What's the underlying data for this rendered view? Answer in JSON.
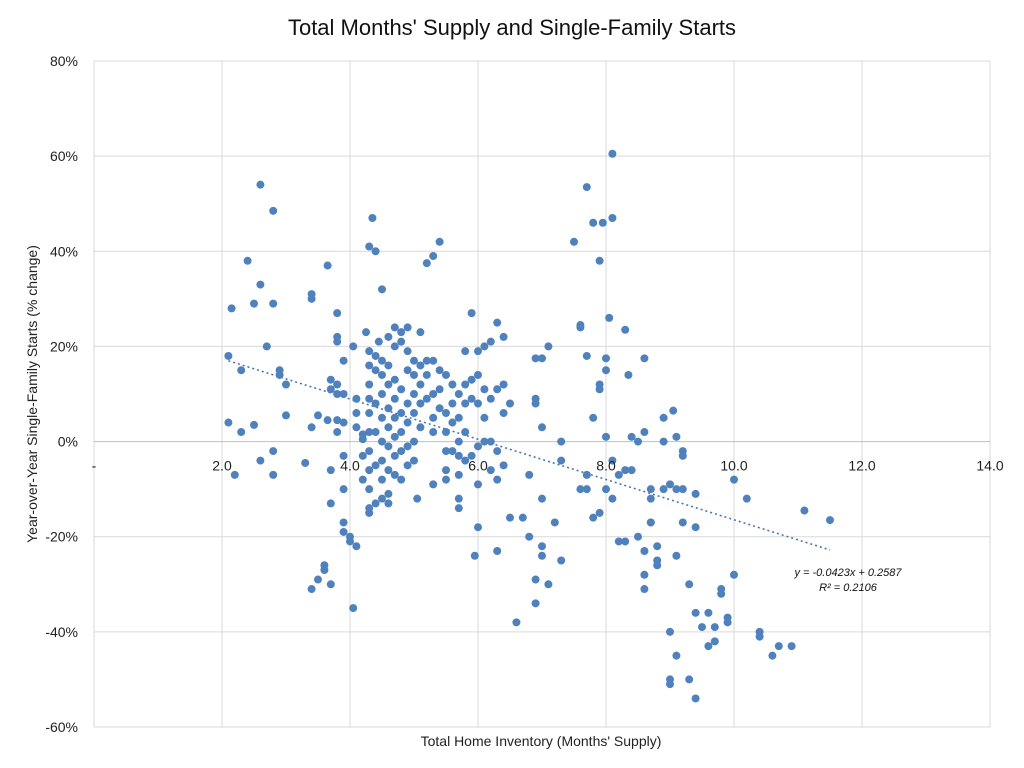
{
  "chart_data": {
    "type": "scatter",
    "title": "Total Months' Supply and Single-Family Starts",
    "xlabel": "Total Home Inventory (Months' Supply)",
    "ylabel": "Year-over-Year Single-Family Starts (% change)",
    "xlim": [
      0,
      14
    ],
    "ylim": [
      -0.6,
      0.8
    ],
    "x_ticks": [
      "-",
      "2.0",
      "4.0",
      "6.0",
      "8.0",
      "10.0",
      "12.0",
      "14.0"
    ],
    "y_ticks": [
      "-60%",
      "-40%",
      "-20%",
      "0%",
      "20%",
      "40%",
      "60%",
      "80%"
    ],
    "grid": true,
    "trendline": {
      "type": "linear",
      "slope": -0.0423,
      "intercept": 0.2587,
      "x_range": [
        2.1,
        11.5
      ],
      "equation": "y = -0.0423x + 0.2587",
      "r_squared": "R² = 0.2106"
    },
    "series": [
      {
        "color": "#4f81bd",
        "points": [
          [
            2.1,
            0.18
          ],
          [
            2.1,
            0.04
          ],
          [
            2.2,
            -0.07
          ],
          [
            2.15,
            0.28
          ],
          [
            2.3,
            0.15
          ],
          [
            2.3,
            0.02
          ],
          [
            2.4,
            0.38
          ],
          [
            2.5,
            0.29
          ],
          [
            2.5,
            0.035
          ],
          [
            2.6,
            0.54
          ],
          [
            2.6,
            0.33
          ],
          [
            2.6,
            -0.04
          ],
          [
            2.7,
            0.2
          ],
          [
            2.8,
            0.485
          ],
          [
            2.8,
            0.29
          ],
          [
            2.8,
            -0.07
          ],
          [
            2.8,
            -0.02
          ],
          [
            2.9,
            0.15
          ],
          [
            2.9,
            0.14
          ],
          [
            3.0,
            0.12
          ],
          [
            3.0,
            0.055
          ],
          [
            3.3,
            -0.045
          ],
          [
            3.4,
            0.3
          ],
          [
            3.4,
            0.31
          ],
          [
            3.4,
            0.03
          ],
          [
            3.5,
            0.055
          ],
          [
            3.4,
            -0.31
          ],
          [
            3.5,
            -0.29
          ],
          [
            3.6,
            -0.27
          ],
          [
            3.6,
            -0.26
          ],
          [
            3.65,
            0.37
          ],
          [
            3.7,
            0.13
          ],
          [
            3.7,
            0.11
          ],
          [
            3.65,
            0.045
          ],
          [
            3.7,
            -0.06
          ],
          [
            3.7,
            -0.13
          ],
          [
            3.7,
            -0.3
          ],
          [
            3.8,
            0.27
          ],
          [
            3.8,
            0.22
          ],
          [
            3.8,
            0.21
          ],
          [
            3.8,
            0.12
          ],
          [
            3.8,
            0.1
          ],
          [
            3.8,
            0.045
          ],
          [
            3.8,
            0.02
          ],
          [
            3.9,
            0.17
          ],
          [
            3.9,
            0.1
          ],
          [
            3.9,
            0.04
          ],
          [
            3.9,
            -0.03
          ],
          [
            3.9,
            -0.1
          ],
          [
            3.9,
            -0.17
          ],
          [
            3.9,
            -0.19
          ],
          [
            4.0,
            -0.2
          ],
          [
            4.0,
            -0.21
          ],
          [
            4.05,
            -0.35
          ],
          [
            4.1,
            -0.22
          ],
          [
            4.05,
            0.2
          ],
          [
            4.1,
            0.09
          ],
          [
            4.1,
            0.06
          ],
          [
            4.1,
            0.03
          ],
          [
            4.2,
            0.005
          ],
          [
            4.2,
            -0.03
          ],
          [
            4.2,
            -0.08
          ],
          [
            4.2,
            0.015
          ],
          [
            4.25,
            0.23
          ],
          [
            4.3,
            0.41
          ],
          [
            4.3,
            0.19
          ],
          [
            4.3,
            0.16
          ],
          [
            4.3,
            0.12
          ],
          [
            4.3,
            0.09
          ],
          [
            4.3,
            0.06
          ],
          [
            4.3,
            0.02
          ],
          [
            4.3,
            -0.02
          ],
          [
            4.3,
            -0.06
          ],
          [
            4.3,
            -0.1
          ],
          [
            4.3,
            -0.14
          ],
          [
            4.3,
            -0.15
          ],
          [
            4.35,
            0.47
          ],
          [
            4.4,
            0.18
          ],
          [
            4.4,
            0.15
          ],
          [
            4.4,
            0.08
          ],
          [
            4.4,
            0.02
          ],
          [
            4.4,
            -0.05
          ],
          [
            4.4,
            -0.13
          ],
          [
            4.4,
            0.4
          ],
          [
            4.45,
            0.21
          ],
          [
            4.5,
            0.17
          ],
          [
            4.5,
            0.14
          ],
          [
            4.5,
            0.1
          ],
          [
            4.5,
            0.05
          ],
          [
            4.5,
            0.0
          ],
          [
            4.5,
            -0.04
          ],
          [
            4.5,
            -0.08
          ],
          [
            4.5,
            -0.12
          ],
          [
            4.5,
            0.32
          ],
          [
            4.6,
            0.22
          ],
          [
            4.6,
            0.16
          ],
          [
            4.6,
            0.12
          ],
          [
            4.6,
            0.07
          ],
          [
            4.6,
            0.03
          ],
          [
            4.6,
            -0.01
          ],
          [
            4.6,
            -0.06
          ],
          [
            4.6,
            -0.11
          ],
          [
            4.6,
            -0.13
          ],
          [
            4.7,
            0.24
          ],
          [
            4.7,
            0.2
          ],
          [
            4.7,
            0.13
          ],
          [
            4.7,
            0.09
          ],
          [
            4.7,
            0.05
          ],
          [
            4.7,
            0.01
          ],
          [
            4.7,
            -0.03
          ],
          [
            4.7,
            -0.07
          ],
          [
            4.8,
            0.23
          ],
          [
            4.8,
            0.21
          ],
          [
            4.8,
            0.11
          ],
          [
            4.8,
            0.06
          ],
          [
            4.8,
            0.02
          ],
          [
            4.8,
            -0.02
          ],
          [
            4.8,
            -0.08
          ],
          [
            4.9,
            0.24
          ],
          [
            4.9,
            0.19
          ],
          [
            4.9,
            0.15
          ],
          [
            4.9,
            0.08
          ],
          [
            4.9,
            0.04
          ],
          [
            4.9,
            -0.01
          ],
          [
            4.9,
            -0.05
          ],
          [
            5.0,
            0.17
          ],
          [
            5.0,
            0.14
          ],
          [
            5.0,
            0.1
          ],
          [
            5.0,
            0.06
          ],
          [
            5.0,
            0.0
          ],
          [
            5.0,
            -0.04
          ],
          [
            5.05,
            -0.12
          ],
          [
            5.1,
            0.23
          ],
          [
            5.1,
            0.16
          ],
          [
            5.1,
            0.12
          ],
          [
            5.1,
            0.08
          ],
          [
            5.1,
            0.03
          ],
          [
            5.2,
            0.375
          ],
          [
            5.2,
            0.17
          ],
          [
            5.2,
            0.14
          ],
          [
            5.2,
            0.09
          ],
          [
            5.3,
            0.39
          ],
          [
            5.3,
            0.17
          ],
          [
            5.3,
            0.1
          ],
          [
            5.3,
            0.05
          ],
          [
            5.3,
            0.02
          ],
          [
            5.3,
            -0.09
          ],
          [
            5.4,
            0.42
          ],
          [
            5.4,
            0.15
          ],
          [
            5.4,
            0.11
          ],
          [
            5.4,
            0.07
          ],
          [
            5.5,
            0.14
          ],
          [
            5.5,
            0.06
          ],
          [
            5.5,
            0.02
          ],
          [
            5.5,
            -0.02
          ],
          [
            5.5,
            -0.06
          ],
          [
            5.5,
            -0.08
          ],
          [
            5.6,
            0.12
          ],
          [
            5.6,
            0.08
          ],
          [
            5.6,
            0.04
          ],
          [
            5.6,
            -0.02
          ],
          [
            5.7,
            0.1
          ],
          [
            5.7,
            0.05
          ],
          [
            5.7,
            0.0
          ],
          [
            5.7,
            -0.03
          ],
          [
            5.7,
            -0.07
          ],
          [
            5.7,
            -0.12
          ],
          [
            5.7,
            -0.14
          ],
          [
            5.8,
            0.19
          ],
          [
            5.8,
            0.12
          ],
          [
            5.8,
            0.08
          ],
          [
            5.8,
            0.02
          ],
          [
            5.8,
            -0.04
          ],
          [
            5.9,
            0.27
          ],
          [
            5.9,
            0.13
          ],
          [
            5.9,
            0.09
          ],
          [
            5.9,
            -0.03
          ],
          [
            5.95,
            -0.24
          ],
          [
            6.0,
            0.19
          ],
          [
            6.0,
            0.14
          ],
          [
            6.0,
            0.08
          ],
          [
            6.0,
            -0.01
          ],
          [
            6.0,
            -0.09
          ],
          [
            6.0,
            -0.18
          ],
          [
            6.1,
            0.2
          ],
          [
            6.1,
            0.11
          ],
          [
            6.1,
            0.05
          ],
          [
            6.1,
            0.0
          ],
          [
            6.2,
            0.21
          ],
          [
            6.2,
            0.09
          ],
          [
            6.2,
            0.0
          ],
          [
            6.2,
            -0.06
          ],
          [
            6.3,
            0.25
          ],
          [
            6.3,
            0.11
          ],
          [
            6.3,
            -0.02
          ],
          [
            6.3,
            -0.08
          ],
          [
            6.3,
            -0.23
          ],
          [
            6.4,
            0.22
          ],
          [
            6.4,
            0.12
          ],
          [
            6.4,
            0.06
          ],
          [
            6.4,
            -0.05
          ],
          [
            6.5,
            0.08
          ],
          [
            6.5,
            -0.16
          ],
          [
            6.6,
            -0.38
          ],
          [
            6.7,
            -0.16
          ],
          [
            6.8,
            -0.2
          ],
          [
            6.8,
            -0.07
          ],
          [
            6.9,
            0.175
          ],
          [
            6.9,
            0.09
          ],
          [
            6.9,
            0.08
          ],
          [
            6.9,
            -0.29
          ],
          [
            6.9,
            -0.34
          ],
          [
            7.0,
            0.175
          ],
          [
            7.0,
            0.03
          ],
          [
            7.0,
            -0.12
          ],
          [
            7.0,
            -0.22
          ],
          [
            7.0,
            -0.24
          ],
          [
            7.1,
            0.2
          ],
          [
            7.1,
            -0.3
          ],
          [
            7.2,
            -0.17
          ],
          [
            7.3,
            -0.04
          ],
          [
            7.3,
            -0.25
          ],
          [
            7.3,
            0.0
          ],
          [
            7.5,
            0.42
          ],
          [
            7.6,
            0.245
          ],
          [
            7.6,
            0.24
          ],
          [
            7.6,
            -0.1
          ],
          [
            7.7,
            0.535
          ],
          [
            7.7,
            0.18
          ],
          [
            7.7,
            -0.07
          ],
          [
            7.7,
            -0.1
          ],
          [
            7.8,
            0.46
          ],
          [
            7.8,
            0.05
          ],
          [
            7.8,
            -0.16
          ],
          [
            7.9,
            0.38
          ],
          [
            7.9,
            0.12
          ],
          [
            7.9,
            -0.15
          ],
          [
            7.9,
            0.11
          ],
          [
            7.95,
            0.46
          ],
          [
            8.0,
            0.15
          ],
          [
            8.0,
            0.01
          ],
          [
            8.0,
            -0.1
          ],
          [
            8.05,
            0.26
          ],
          [
            8.0,
            0.175
          ],
          [
            8.1,
            0.605
          ],
          [
            8.1,
            0.47
          ],
          [
            8.1,
            -0.04
          ],
          [
            8.1,
            -0.12
          ],
          [
            8.2,
            -0.07
          ],
          [
            8.2,
            -0.21
          ],
          [
            8.3,
            0.235
          ],
          [
            8.3,
            -0.06
          ],
          [
            8.3,
            -0.21
          ],
          [
            8.35,
            0.14
          ],
          [
            8.4,
            0.01
          ],
          [
            8.4,
            -0.06
          ],
          [
            8.5,
            0.0
          ],
          [
            8.5,
            -0.2
          ],
          [
            8.6,
            0.175
          ],
          [
            8.6,
            0.02
          ],
          [
            8.6,
            -0.23
          ],
          [
            8.6,
            -0.28
          ],
          [
            8.6,
            -0.31
          ],
          [
            8.7,
            -0.12
          ],
          [
            8.7,
            -0.17
          ],
          [
            8.7,
            -0.17
          ],
          [
            8.7,
            -0.1
          ],
          [
            8.8,
            -0.25
          ],
          [
            8.8,
            -0.22
          ],
          [
            8.8,
            -0.26
          ],
          [
            8.9,
            0.05
          ],
          [
            8.9,
            0.0
          ],
          [
            8.9,
            -0.1
          ],
          [
            9.0,
            -0.5
          ],
          [
            9.0,
            -0.51
          ],
          [
            9.0,
            -0.4
          ],
          [
            9.0,
            -0.09
          ],
          [
            9.05,
            0.065
          ],
          [
            9.1,
            -0.1
          ],
          [
            9.1,
            -0.24
          ],
          [
            9.1,
            -0.45
          ],
          [
            9.1,
            0.01
          ],
          [
            9.2,
            -0.02
          ],
          [
            9.2,
            -0.03
          ],
          [
            9.2,
            -0.17
          ],
          [
            9.2,
            -0.1
          ],
          [
            9.3,
            -0.3
          ],
          [
            9.3,
            -0.5
          ],
          [
            9.4,
            -0.18
          ],
          [
            9.4,
            -0.36
          ],
          [
            9.4,
            -0.54
          ],
          [
            9.4,
            -0.11
          ],
          [
            9.5,
            -0.39
          ],
          [
            9.6,
            -0.36
          ],
          [
            9.6,
            -0.43
          ],
          [
            9.7,
            -0.42
          ],
          [
            9.7,
            -0.39
          ],
          [
            9.8,
            -0.32
          ],
          [
            9.8,
            -0.31
          ],
          [
            9.9,
            -0.38
          ],
          [
            9.9,
            -0.37
          ],
          [
            10.0,
            -0.08
          ],
          [
            10.0,
            -0.28
          ],
          [
            10.2,
            -0.12
          ],
          [
            10.4,
            -0.4
          ],
          [
            10.4,
            -0.41
          ],
          [
            10.6,
            -0.45
          ],
          [
            10.7,
            -0.43
          ],
          [
            10.9,
            -0.43
          ],
          [
            11.1,
            -0.145
          ],
          [
            11.5,
            -0.165
          ]
        ]
      }
    ]
  }
}
